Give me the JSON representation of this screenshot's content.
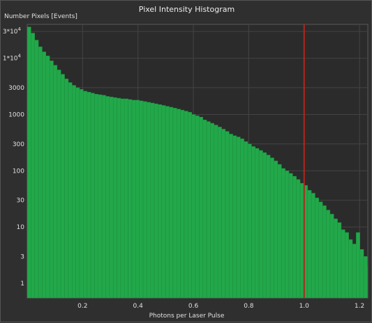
{
  "chart_data": {
    "type": "bar",
    "title": "Pixel Intensity Histogram",
    "xlabel": "Photons per Laser Pulse",
    "ylabel": "Number Pixels [Events]",
    "y_scale": "log",
    "x_range": [
      0.0,
      1.23
    ],
    "y_range": [
      0.55,
      40000
    ],
    "grid": true,
    "bar_color": "#22a84a",
    "marker_line": {
      "x": 1.0,
      "color": "#b3261e"
    },
    "x_ticks": [
      {
        "value": 0.2,
        "label": "0.2"
      },
      {
        "value": 0.4,
        "label": "0.4"
      },
      {
        "value": 0.6,
        "label": "0.6"
      },
      {
        "value": 0.8,
        "label": "0.8"
      },
      {
        "value": 1.0,
        "label": "1.0"
      },
      {
        "value": 1.2,
        "label": "1.2"
      }
    ],
    "y_ticks": [
      {
        "value": 1,
        "label": "1",
        "sup": ""
      },
      {
        "value": 3,
        "label": "3",
        "sup": ""
      },
      {
        "value": 10,
        "label": "10",
        "sup": ""
      },
      {
        "value": 30,
        "label": "30",
        "sup": ""
      },
      {
        "value": 100,
        "label": "100",
        "sup": ""
      },
      {
        "value": 300,
        "label": "300",
        "sup": ""
      },
      {
        "value": 1000,
        "label": "1000",
        "sup": ""
      },
      {
        "value": 3000,
        "label": "3000",
        "sup": ""
      },
      {
        "value": 10000,
        "label": "1*10",
        "sup": "4"
      },
      {
        "value": 30000,
        "label": "3*10",
        "sup": "4"
      }
    ],
    "bin_start": 0.0,
    "bin_width": 0.0135,
    "values": [
      36000,
      28000,
      21000,
      16000,
      13000,
      11000,
      9000,
      7500,
      6200,
      5200,
      4300,
      3700,
      3300,
      3000,
      2800,
      2600,
      2500,
      2400,
      2300,
      2250,
      2200,
      2100,
      2050,
      2000,
      1950,
      1900,
      1900,
      1850,
      1800,
      1800,
      1750,
      1700,
      1650,
      1600,
      1550,
      1500,
      1450,
      1400,
      1350,
      1300,
      1250,
      1200,
      1150,
      1100,
      1000,
      950,
      900,
      800,
      750,
      700,
      650,
      600,
      550,
      500,
      450,
      420,
      400,
      370,
      330,
      300,
      270,
      250,
      230,
      210,
      190,
      170,
      150,
      130,
      110,
      100,
      90,
      80,
      70,
      60,
      55,
      45,
      40,
      33,
      28,
      24,
      20,
      17,
      14,
      12,
      9,
      8,
      6,
      5,
      8,
      4,
      3,
      2,
      2,
      1.5,
      1.5,
      1.5,
      1,
      1,
      1.5,
      1,
      0,
      1,
      1,
      1,
      0,
      0,
      1,
      0,
      0,
      1,
      0,
      0,
      0,
      0,
      0,
      0,
      0,
      0,
      0,
      0
    ]
  }
}
